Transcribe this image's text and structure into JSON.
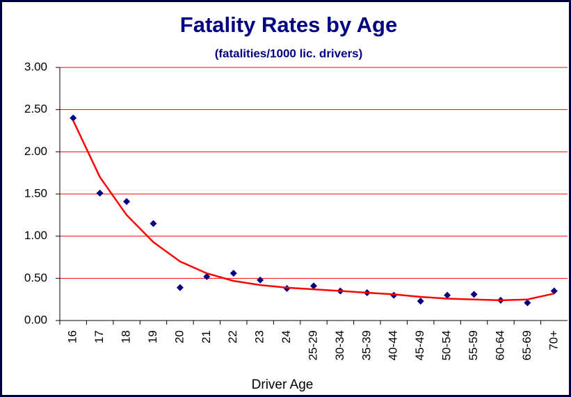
{
  "chart_data": {
    "type": "scatter",
    "title": "Fatality Rates by Age",
    "subtitle": "(fatalities/1000 lic. drivers)",
    "x_label": "Driver Age",
    "categories": [
      "16",
      "17",
      "18",
      "19",
      "20",
      "21",
      "22",
      "23",
      "24",
      "25-29",
      "30-34",
      "35-39",
      "40-44",
      "45-49",
      "50-54",
      "55-59",
      "60-64",
      "65-69",
      "70+"
    ],
    "series": [
      {
        "mode": "markers",
        "color": "#000080",
        "values": [
          2.4,
          1.51,
          1.41,
          1.15,
          0.39,
          0.52,
          0.56,
          0.48,
          0.38,
          0.41,
          0.35,
          0.33,
          0.3,
          0.23,
          0.3,
          0.31,
          0.24,
          0.21,
          0.35
        ]
      },
      {
        "mode": "line",
        "color": "#ff0000",
        "values": [
          2.37,
          1.7,
          1.25,
          0.93,
          0.7,
          0.56,
          0.47,
          0.42,
          0.39,
          0.37,
          0.35,
          0.33,
          0.31,
          0.28,
          0.26,
          0.25,
          0.24,
          0.25,
          0.32
        ]
      }
    ],
    "ylim": [
      0,
      3
    ],
    "yticks": [
      {
        "value": 0,
        "label": "0.00"
      },
      {
        "value": 0.5,
        "label": "0.50"
      },
      {
        "value": 1,
        "label": "1.00"
      },
      {
        "value": 1.5,
        "label": "1.50"
      },
      {
        "value": 2,
        "label": "2.00"
      },
      {
        "value": 2.5,
        "label": "2.50"
      },
      {
        "value": 3,
        "label": "3.00"
      }
    ],
    "grid": true,
    "grid_color": "#ff0000"
  }
}
